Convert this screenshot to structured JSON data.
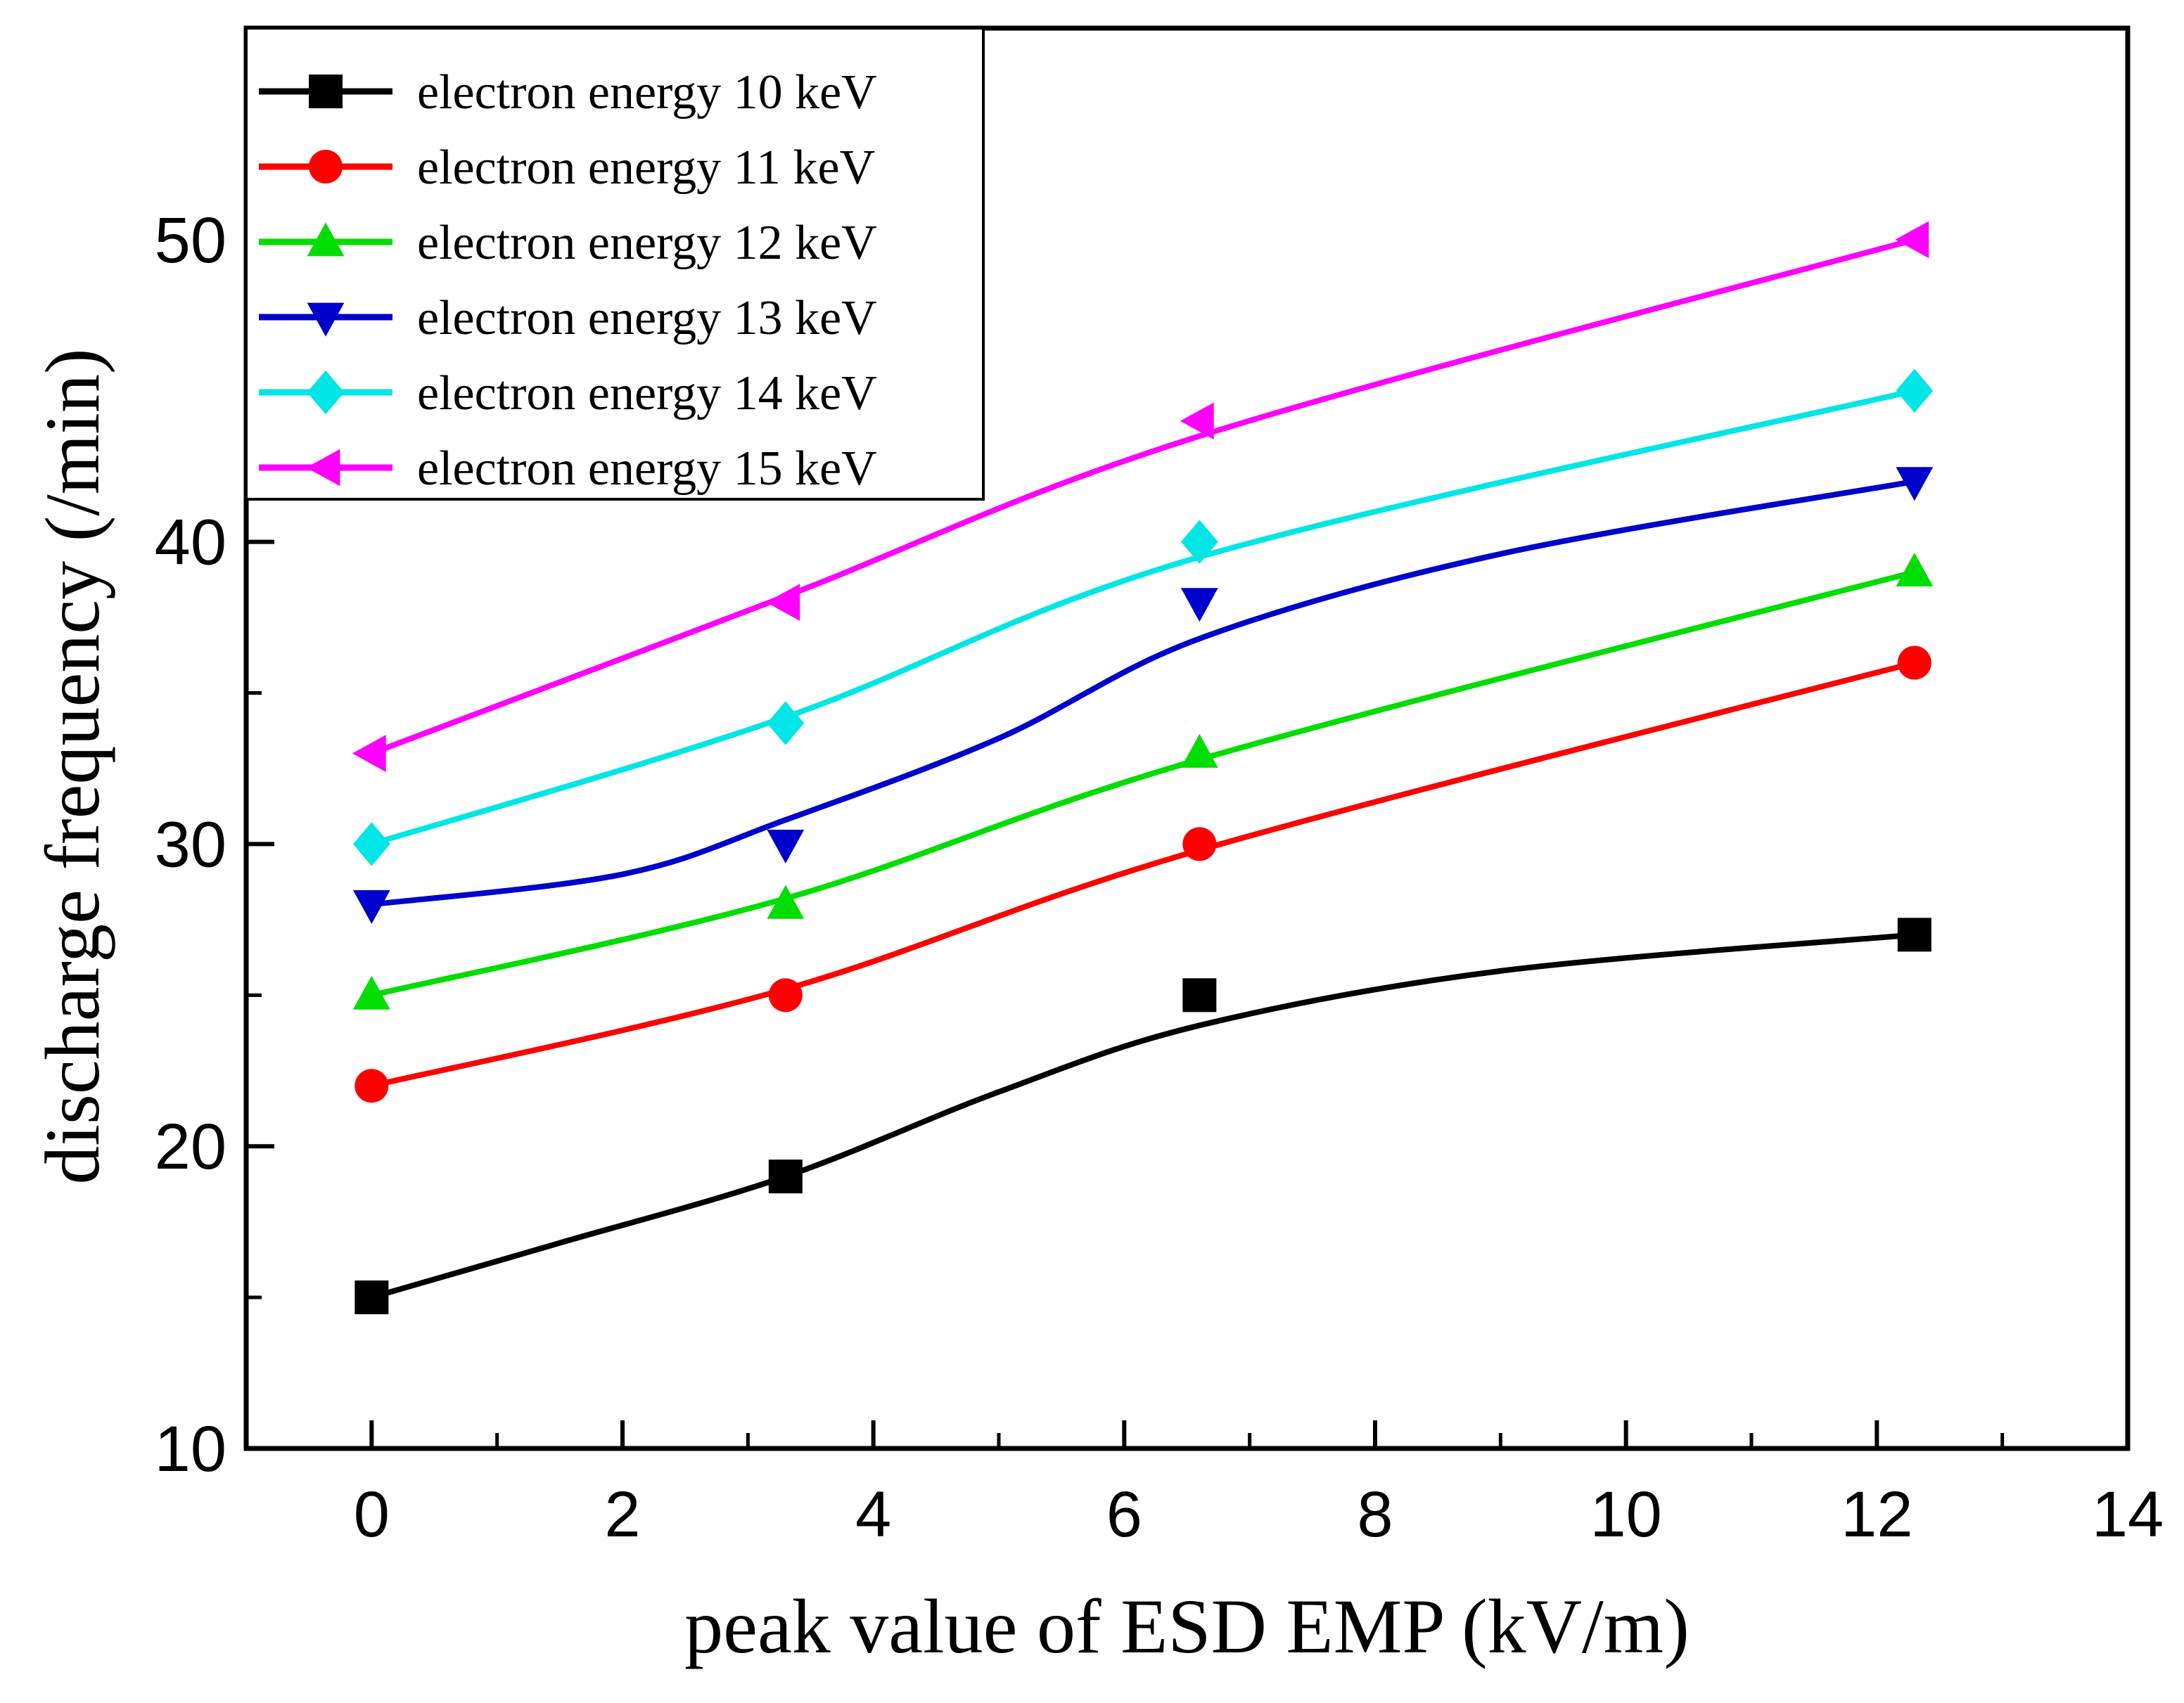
{
  "chart_data": {
    "type": "line",
    "title": "",
    "xlabel": "peak value of ESD EMP (kV/m)",
    "ylabel": "discharge frequency (/min)",
    "xlim": [
      -1,
      14
    ],
    "ylim": [
      10,
      57
    ],
    "xticks": [
      0,
      2,
      4,
      6,
      8,
      10,
      12,
      14
    ],
    "xtick_labels": [
      "0",
      "2",
      "4",
      "6",
      "8",
      "10",
      "12",
      "14"
    ],
    "yticks": [
      10,
      20,
      30,
      40,
      50
    ],
    "ytick_labels": [
      "10",
      "20",
      "30",
      "40",
      "50"
    ],
    "legend_position": "top-left",
    "x": [
      0,
      3.3,
      6.6,
      12.3
    ],
    "series": [
      {
        "name": "electron energy 10 keV",
        "color": "#000000",
        "marker": "square",
        "values": [
          15,
          19,
          25,
          27
        ],
        "fit": [
          [
            0,
            15
          ],
          [
            1.5,
            16.8
          ],
          [
            3.3,
            19
          ],
          [
            5,
            21.8
          ],
          [
            6.6,
            24
          ],
          [
            9,
            25.8
          ],
          [
            12.3,
            27
          ]
        ]
      },
      {
        "name": "electron energy 11 keV",
        "color": "#ff0000",
        "marker": "circle",
        "values": [
          22,
          25,
          30,
          36
        ],
        "fit": [
          [
            0,
            22
          ],
          [
            3.3,
            25.2
          ],
          [
            6.6,
            29.8
          ],
          [
            12.3,
            36
          ]
        ]
      },
      {
        "name": "electron energy 12 keV",
        "color": "#00dd00",
        "marker": "triangle-up",
        "values": [
          25,
          28,
          33,
          39
        ],
        "fit": [
          [
            0,
            25
          ],
          [
            3.3,
            28.2
          ],
          [
            6.6,
            32.8
          ],
          [
            12.3,
            39
          ]
        ]
      },
      {
        "name": "electron energy 13 keV",
        "color": "#0000cc",
        "marker": "triangle-down",
        "values": [
          28,
          30,
          38,
          42
        ],
        "fit": [
          [
            0,
            28
          ],
          [
            2,
            29
          ],
          [
            3.3,
            30.8
          ],
          [
            5,
            33.5
          ],
          [
            6.6,
            36.8
          ],
          [
            9,
            39.6
          ],
          [
            12.3,
            42
          ]
        ]
      },
      {
        "name": "electron energy 14 keV",
        "color": "#00e5e5",
        "marker": "diamond",
        "values": [
          30,
          34,
          40,
          45
        ],
        "fit": [
          [
            0,
            30
          ],
          [
            3.3,
            34.2
          ],
          [
            6.6,
            39.5
          ],
          [
            12.3,
            45
          ]
        ]
      },
      {
        "name": "electron energy 15 keV",
        "color": "#ff00ff",
        "marker": "triangle-left",
        "values": [
          33,
          38,
          44,
          50
        ],
        "fit": [
          [
            0,
            33
          ],
          [
            3.3,
            38.2
          ],
          [
            6.6,
            43.5
          ],
          [
            12.3,
            50
          ]
        ]
      }
    ]
  }
}
